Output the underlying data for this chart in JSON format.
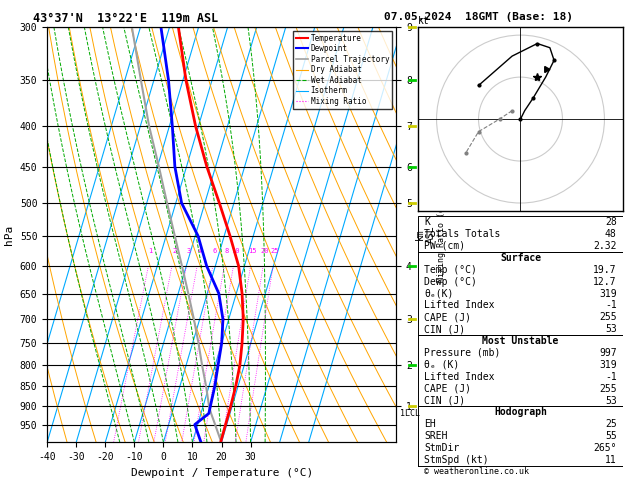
{
  "title_left": "43°37'N  13°22'E  119m ASL",
  "title_right": "07.05.2024  18GMT (Base: 18)",
  "xlabel": "Dewpoint / Temperature (°C)",
  "ylabel_left": "hPa",
  "temp_ticks": [
    -40,
    -30,
    -20,
    -10,
    0,
    10,
    20,
    30
  ],
  "lcl_pressure": 920,
  "mixing_ratio_vals": [
    1,
    2,
    3,
    4,
    6,
    8,
    10,
    15,
    20,
    25
  ],
  "temp_profile_p": [
    300,
    350,
    400,
    450,
    500,
    550,
    600,
    650,
    700,
    750,
    800,
    850,
    900,
    950,
    997
  ],
  "temp_profile_t": [
    -37,
    -29,
    -21,
    -13,
    -5,
    2,
    8,
    12,
    15,
    17,
    18.5,
    19.2,
    19.5,
    19.6,
    19.7
  ],
  "dewp_profile_p": [
    300,
    350,
    400,
    450,
    500,
    550,
    600,
    650,
    700,
    750,
    800,
    850,
    900,
    920,
    950,
    997
  ],
  "dewp_profile_t": [
    -43,
    -35,
    -29,
    -24,
    -18,
    -9,
    -3,
    4,
    8,
    10,
    11,
    12,
    12.5,
    12.7,
    9,
    12.7
  ],
  "parcel_profile_p": [
    997,
    950,
    920,
    900,
    850,
    800,
    750,
    700,
    650,
    600,
    550,
    500,
    450,
    400,
    350,
    300
  ],
  "parcel_profile_t": [
    19.7,
    16,
    13.5,
    12,
    9,
    5.5,
    2,
    -2,
    -6.5,
    -11.5,
    -17,
    -23,
    -29.5,
    -37,
    -44.5,
    -53
  ],
  "bg_color": "#ffffff",
  "temp_color": "#ff0000",
  "dewp_color": "#0000ff",
  "parcel_color": "#a0a0a0",
  "dry_adiabat_color": "#ffa500",
  "wet_adiabat_color": "#00aa00",
  "isotherm_color": "#00aaff",
  "mixing_ratio_color": "#ff00ff",
  "info_K": 28,
  "info_TT": 48,
  "info_PW": 2.32,
  "surf_temp": 19.7,
  "surf_dewp": 12.7,
  "surf_theta": 319,
  "surf_li": -1,
  "surf_cape": 255,
  "surf_cin": 53,
  "mu_pressure": 997,
  "mu_theta": 319,
  "mu_li": -1,
  "mu_cape": 255,
  "mu_cin": 53,
  "hodo_eh": 25,
  "hodo_sreh": 55,
  "hodo_stmdir": 265,
  "hodo_stmspd": 11,
  "copyright": "© weatheronline.co.uk"
}
